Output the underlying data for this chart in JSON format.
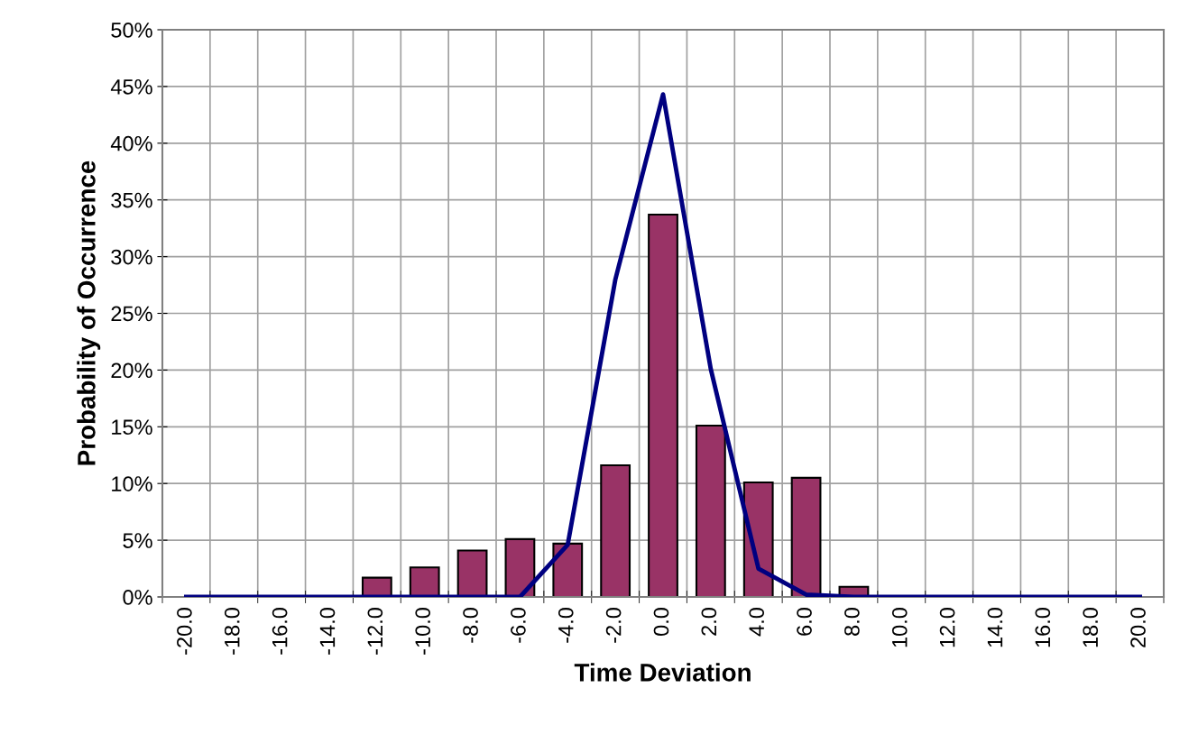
{
  "chart_data": {
    "type": "bar",
    "xlabel": "Time Deviation",
    "ylabel": "Probability of Occurrence",
    "categories": [
      "-20.0",
      "-18.0",
      "-16.0",
      "-14.0",
      "-12.0",
      "-10.0",
      "-8.0",
      "-6.0",
      "-4.0",
      "-2.0",
      "0.0",
      "2.0",
      "4.0",
      "6.0",
      "8.0",
      "10.0",
      "12.0",
      "14.0",
      "16.0",
      "18.0",
      "20.0"
    ],
    "series": [
      {
        "color": "#993366",
        "values": [
          0,
          0,
          0,
          0,
          1.7,
          2.6,
          4.1,
          5.1,
          4.7,
          11.6,
          33.7,
          15.1,
          10.1,
          10.5,
          0.9,
          0,
          0,
          0,
          0,
          0,
          0
        ]
      },
      {
        "type": "line",
        "color": "#000080",
        "values": [
          0,
          0,
          0,
          0,
          0,
          0,
          0,
          0,
          4.6,
          28,
          44.3,
          20.1,
          2.5,
          0.2,
          0,
          0,
          0,
          0,
          0,
          0,
          0
        ]
      }
    ],
    "ylim": [
      0,
      50
    ],
    "yticks": [
      {
        "value": 0,
        "label": "0%"
      },
      {
        "value": 5,
        "label": "5%"
      },
      {
        "value": 10,
        "label": "10%"
      },
      {
        "value": 15,
        "label": "15%"
      },
      {
        "value": 20,
        "label": "20%"
      },
      {
        "value": 25,
        "label": "25%"
      },
      {
        "value": 30,
        "label": "30%"
      },
      {
        "value": 35,
        "label": "35%"
      },
      {
        "value": 40,
        "label": "40%"
      },
      {
        "value": 45,
        "label": "45%"
      },
      {
        "value": 50,
        "label": "50%"
      }
    ],
    "grid": true,
    "marker": "none",
    "line_style": "solid"
  }
}
